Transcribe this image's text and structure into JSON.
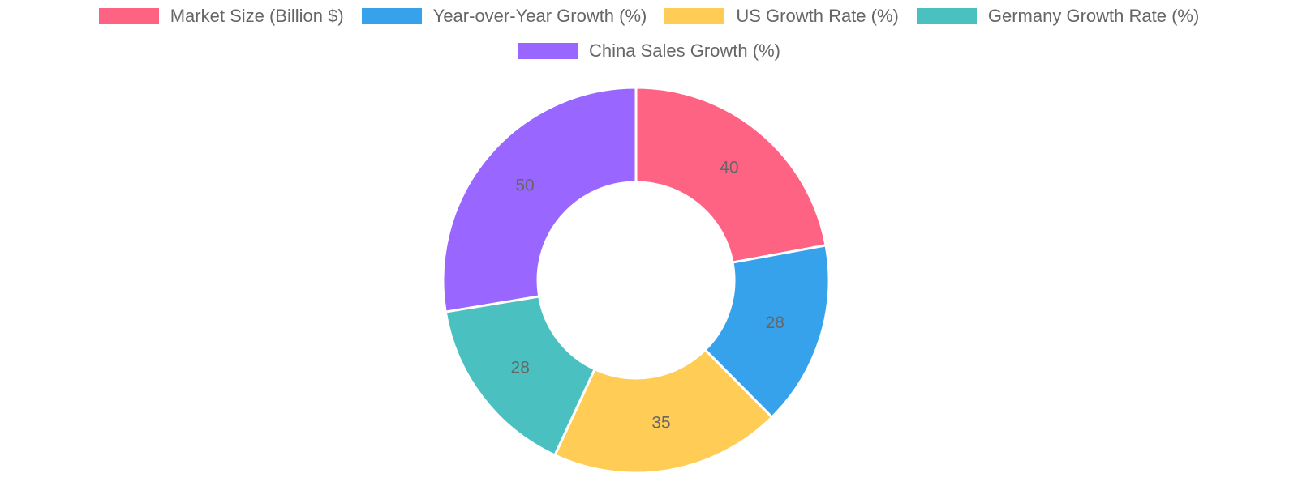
{
  "chart_data": {
    "type": "doughnut",
    "categories": [
      "Market Size (Billion $)",
      "Year-over-Year Growth (%)",
      "US Growth Rate (%)",
      "Germany Growth Rate (%)",
      "China Sales Growth (%)"
    ],
    "values": [
      40,
      28,
      35,
      28,
      50
    ],
    "colors": [
      "#ff6384",
      "#36a2eb",
      "#ffcd56",
      "#4bc0c0",
      "#9966ff"
    ],
    "legend_position": "top",
    "data_labels": true
  }
}
